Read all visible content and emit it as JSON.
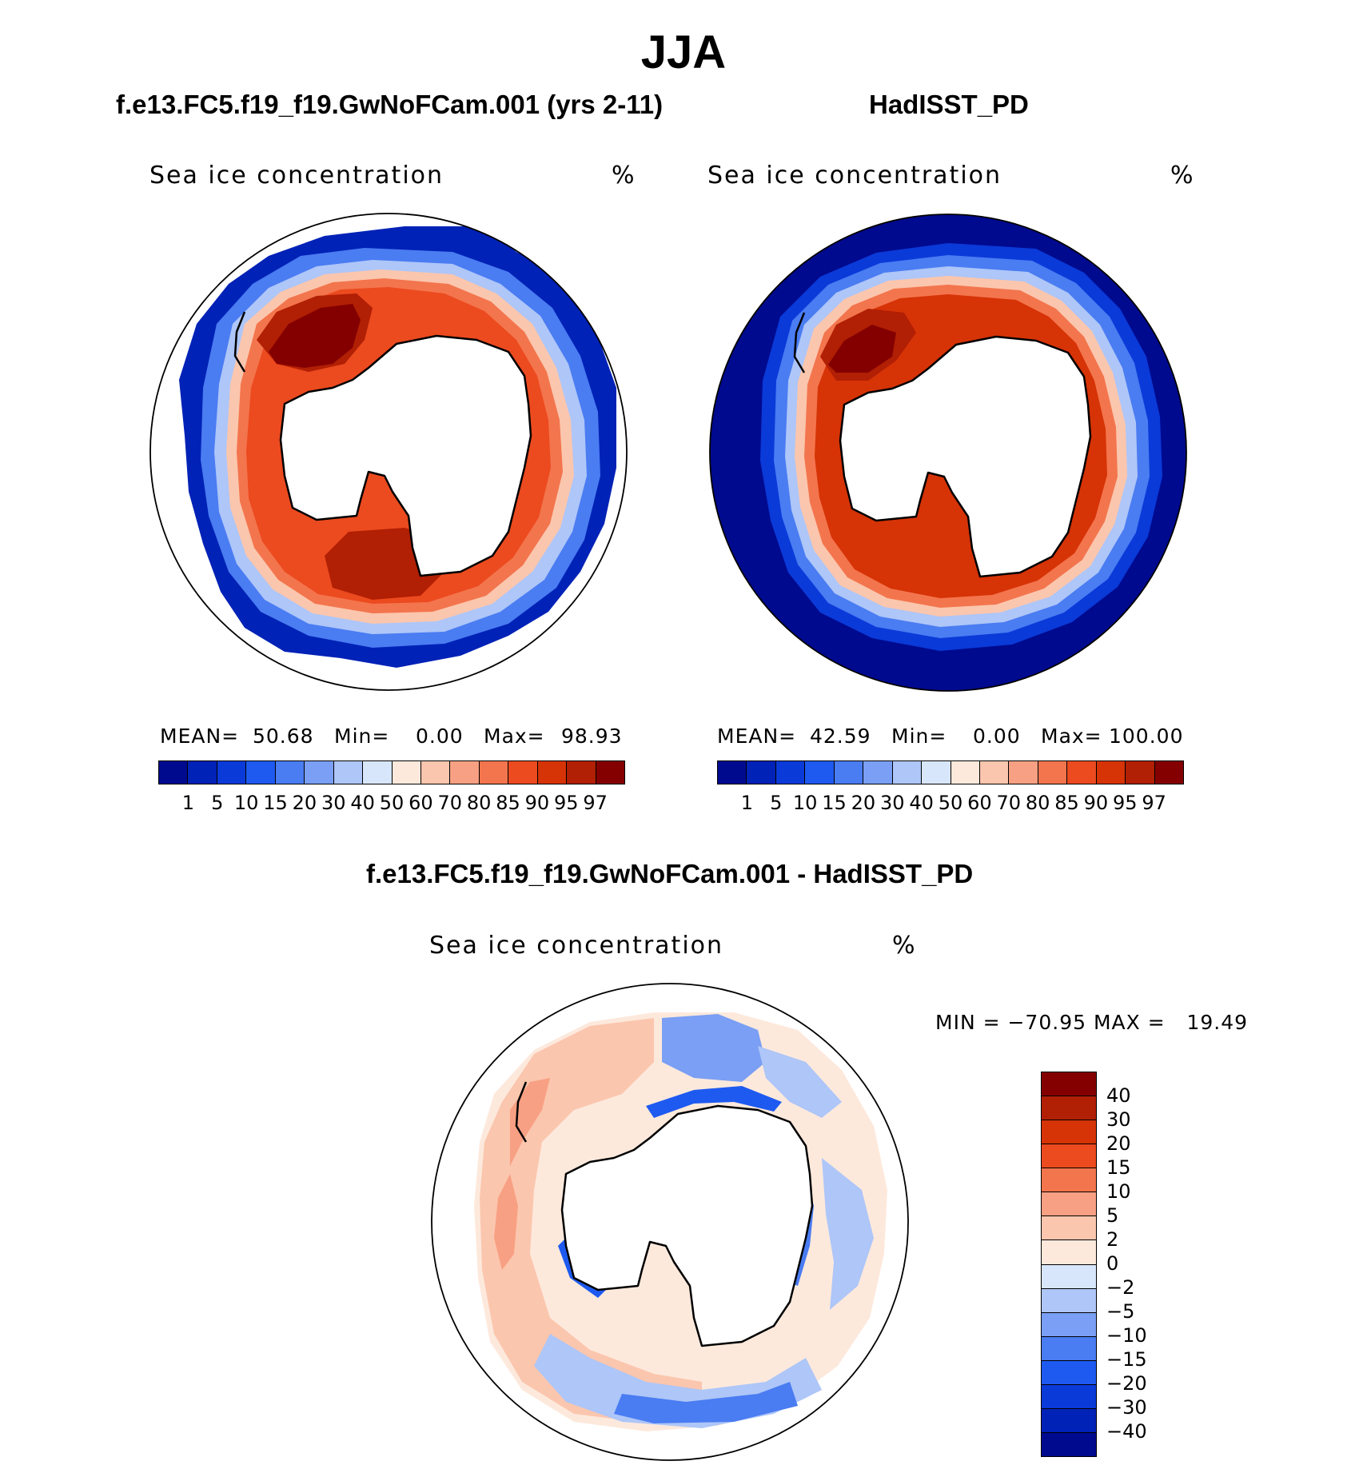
{
  "title": "JJA",
  "panels": {
    "model": {
      "case_title": "f.e13.FC5.f19_f19.GwNoFCam.001 (yrs 2-11)",
      "field_label": "Sea ice concentration",
      "units": "%",
      "stats": {
        "mean_label": "MEAN=",
        "mean": "50.68",
        "min_label": "Min=",
        "min": "0.00",
        "max_label": "Max=",
        "max": "98.93"
      }
    },
    "obs": {
      "case_title": "HadISST_PD",
      "field_label": "Sea ice concentration",
      "units": "%",
      "stats": {
        "mean_label": "MEAN=",
        "mean": "42.59",
        "min_label": "Min=",
        "min": "0.00",
        "max_label": "Max=",
        "max": "100.00"
      }
    },
    "diff": {
      "case_title": "f.e13.FC5.f19_f19.GwNoFCam.001 - HadISST_PD",
      "field_label": "Sea ice concentration",
      "units": "%",
      "minmax": "MIN = −70.95 MAX =   19.49"
    }
  },
  "colorbars": {
    "concentration": {
      "ticks": [
        "1",
        "5",
        "10",
        "15",
        "20",
        "30",
        "40",
        "50",
        "60",
        "70",
        "80",
        "85",
        "90",
        "95",
        "97"
      ],
      "colors": [
        "#000a8f",
        "#0022b6",
        "#0a3ad8",
        "#1e5af0",
        "#4a7cf2",
        "#7a9ff4",
        "#aec6f8",
        "#d8e6fb",
        "#fde9dc",
        "#fbc6ae",
        "#f8a083",
        "#f3754d",
        "#ec4a1f",
        "#d63306",
        "#b11f04",
        "#840000"
      ]
    },
    "difference": {
      "ticks": [
        "40",
        "30",
        "20",
        "15",
        "10",
        "5",
        "2",
        "0",
        "−2",
        "−5",
        "−10",
        "−15",
        "−20",
        "−30",
        "−40"
      ],
      "colors": [
        "#840000",
        "#b11f04",
        "#d63306",
        "#ec4a1f",
        "#f3754d",
        "#f8a083",
        "#fbc6ae",
        "#fde9dc",
        "#d8e6fb",
        "#aec6f8",
        "#7a9ff4",
        "#4a7cf2",
        "#1e5af0",
        "#0a3ad8",
        "#0022b6",
        "#000a8f"
      ]
    }
  }
}
